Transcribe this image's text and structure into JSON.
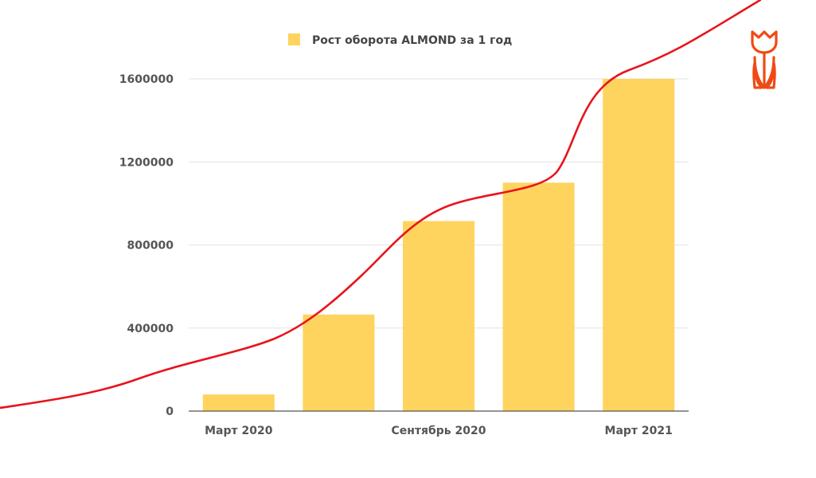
{
  "colors": {
    "bar": "#FED45E",
    "trend_line": "#E8141C",
    "logo": "#F04A14",
    "axis_text": "#555555"
  },
  "logo": {
    "icon": "tulip-icon"
  },
  "chart_data": {
    "type": "bar",
    "legend": {
      "position": "top",
      "entries": [
        "Рост оборота ALMOND за 1 год"
      ]
    },
    "categories": [
      "Март 2020",
      "",
      "Сентябрь 2020",
      "",
      "Март 2021"
    ],
    "series": [
      {
        "name": "Рост оборота ALMOND за 1 год",
        "values": [
          80000,
          465000,
          915000,
          1100000,
          1600000
        ]
      }
    ],
    "ylim": [
      0,
      1600000
    ],
    "yticks": [
      "0",
      "400000",
      "800000",
      "1200000",
      "1600000"
    ],
    "grid": true,
    "decoration": "red growth curve overlay"
  }
}
